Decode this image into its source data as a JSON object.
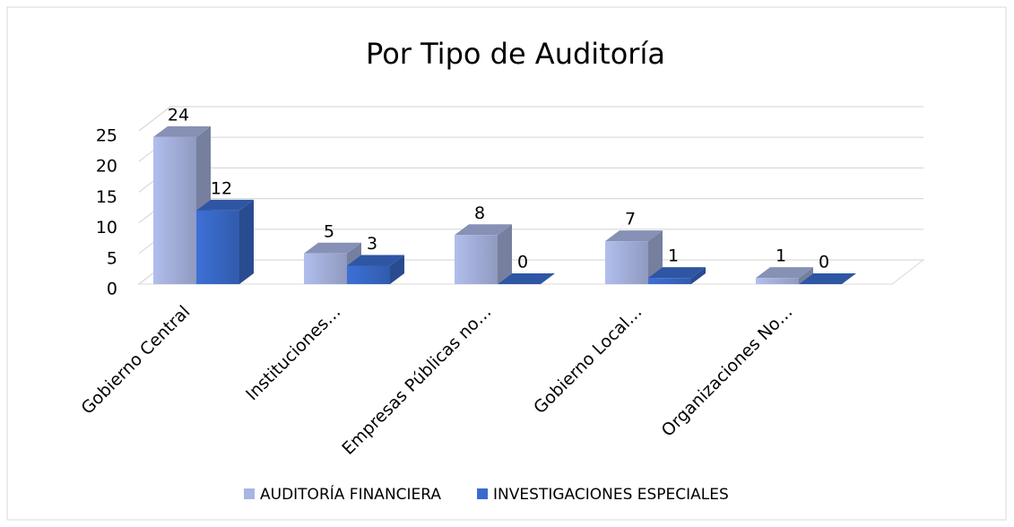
{
  "chart_data": {
    "type": "bar3d",
    "title": "Por Tipo de Auditoría",
    "categories": [
      "Gobierno Central",
      "Instituciones…",
      "Empresas Públicas no…",
      "Gobierno Local…",
      "Organizaciones No…"
    ],
    "series": [
      {
        "name": "AUDITORÍA FINANCIERA",
        "color": "#a9b5e2",
        "values": [
          24,
          5,
          8,
          7,
          1
        ]
      },
      {
        "name": "INVESTIGACIONES ESPECIALES",
        "color": "#3a6bcc",
        "values": [
          12,
          3,
          0,
          1,
          0
        ]
      }
    ],
    "ylim": [
      0,
      25
    ],
    "yticks": [
      0,
      5,
      10,
      15,
      20,
      25
    ],
    "grid": true,
    "legend": "bottom"
  }
}
